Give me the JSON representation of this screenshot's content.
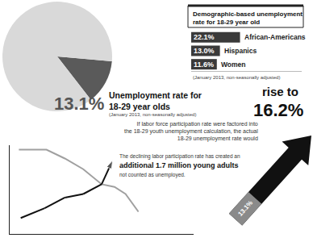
{
  "chart_data": [
    {
      "type": "pie",
      "title": "Unemployment rate for 18-29 year olds",
      "subtitle": "(January 2013, non-seasonally adjusted)",
      "values": [
        13.1,
        86.9
      ],
      "value_labels": [
        "13.1%",
        null
      ],
      "colors": [
        "#5a5a5a",
        "#d9d9d9"
      ]
    },
    {
      "type": "bar",
      "title": "Demographic-based unemployment rate for 18-29 year old",
      "subtitle": "(January 2013, non-seasonally adjusted)",
      "orientation": "horizontal",
      "categories": [
        "African-Americans",
        "Hispanics",
        "Women"
      ],
      "values": [
        22.1,
        13.0,
        11.6
      ],
      "value_labels": [
        "22.1%",
        "13.0%",
        "11.6%"
      ],
      "color": "#3a3a3a",
      "xlim": [
        0,
        50
      ],
      "xticks": [],
      "tick_labels": false,
      "data_labels": true
    },
    {
      "type": "arrow",
      "text": "If labor force participation rate were factored into the 18-29 youth unemployment calculation, the actual 18-29 unemployment rate would",
      "label": "rise to",
      "from": "13.1%",
      "to": "16.2%"
    },
    {
      "type": "line",
      "series": [
        {
          "color": "#a0a0a0",
          "x": [
            0.5,
            2,
            3,
            4,
            5,
            5.7,
            6.3,
            7
          ],
          "values": [
            9.5,
            9.5,
            8.5,
            7.3,
            5.6,
            5.3,
            4.5,
            2.5
          ]
        },
        {
          "color": "#111111",
          "x": [
            0.6,
            1.9,
            3,
            4,
            5,
            5.6
          ],
          "values": [
            1.8,
            2.9,
            4.1,
            4.5,
            5.6,
            8.3
          ],
          "marker": "arrow"
        }
      ],
      "xlim": [
        0,
        10
      ],
      "ylim": [
        0,
        10
      ],
      "xticks": [],
      "yticks": [],
      "tick_labels": false,
      "grid": false,
      "annotations": [
        "The declining labor participation rate has created an",
        "additional 1.7 million young adults",
        "not counted as unemployed."
      ]
    }
  ]
}
